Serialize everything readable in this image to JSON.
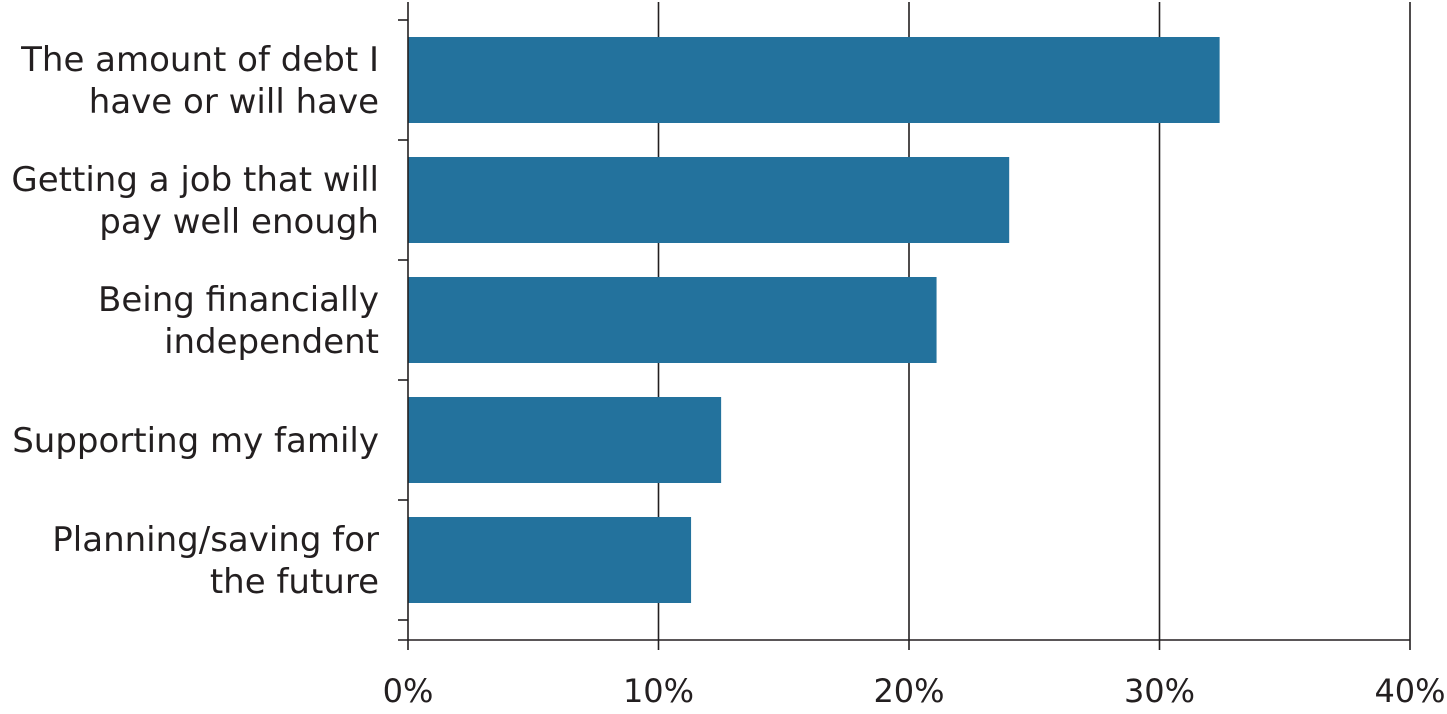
{
  "chart_data": {
    "type": "bar",
    "orientation": "horizontal",
    "title": "",
    "xlabel": "",
    "ylabel": "",
    "categories": [
      [
        "The amount of debt I",
        "have or will have"
      ],
      [
        "Getting a job that will",
        "pay well enough"
      ],
      [
        "Being financially",
        "independent"
      ],
      [
        "Supporting my family"
      ],
      [
        "Planning/saving for",
        "the future"
      ]
    ],
    "values": [
      32.4,
      24.0,
      21.1,
      12.5,
      11.3
    ],
    "xlim": [
      0,
      40
    ],
    "xticks": [
      0,
      10,
      20,
      30,
      40
    ],
    "xtick_labels": [
      "0%",
      "10%",
      "20%",
      "30%",
      "40%"
    ],
    "grid": "vertical",
    "legend": "none",
    "bar_color": "#23729d"
  }
}
